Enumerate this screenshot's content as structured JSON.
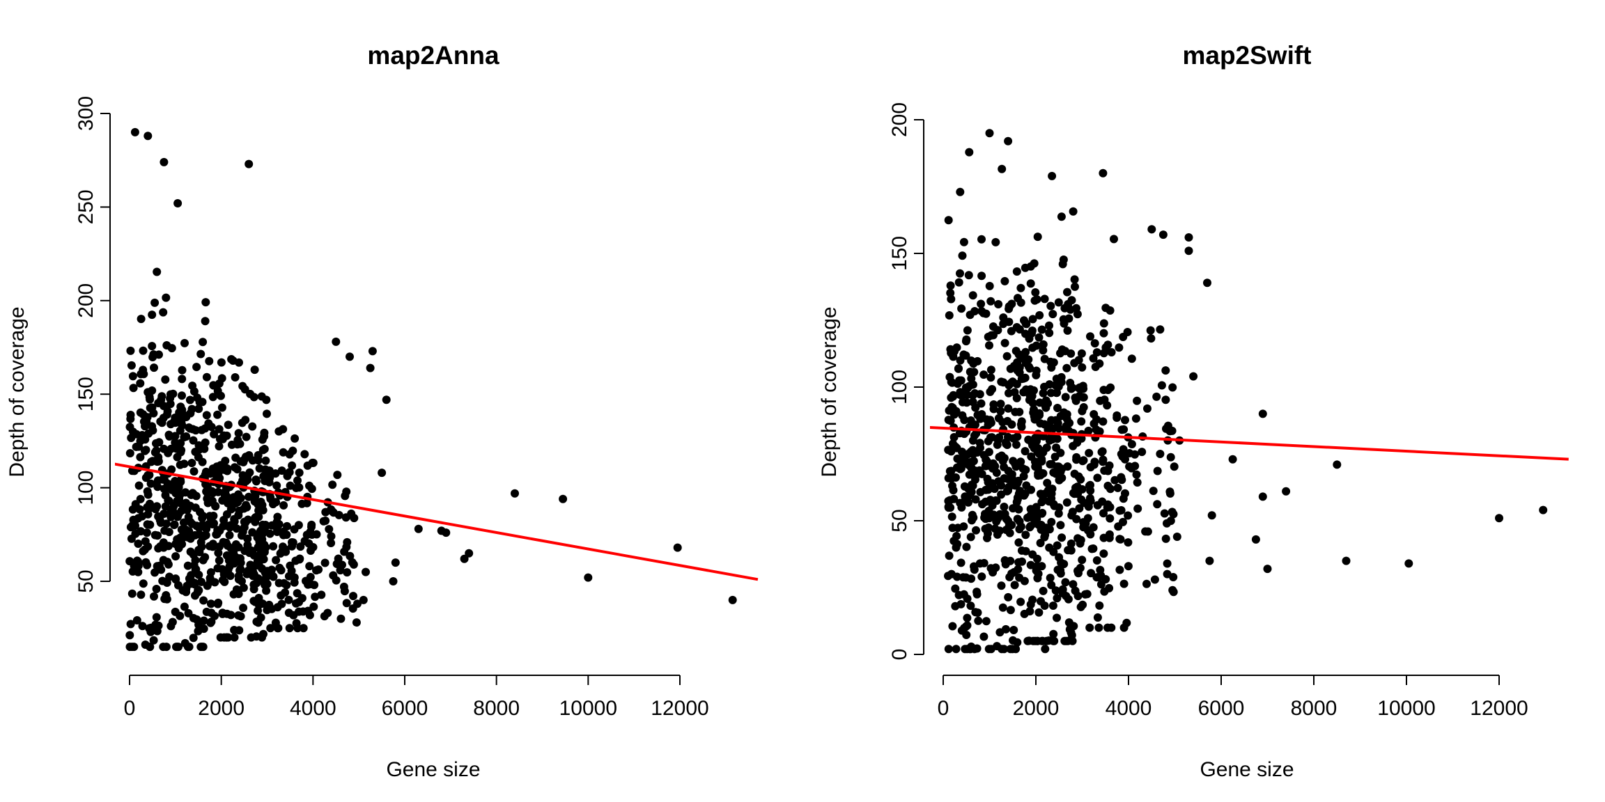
{
  "chart_data": [
    {
      "type": "scatter",
      "title": "map2Anna",
      "xlabel": "Gene size",
      "ylabel": "Depth of coverage",
      "xlim": [
        0,
        13500
      ],
      "ylim": [
        10,
        300
      ],
      "xticks": [
        0,
        2000,
        4000,
        6000,
        8000,
        10000,
        12000
      ],
      "yticks": [
        50,
        100,
        150,
        200,
        250,
        300
      ],
      "point_color": "#000000",
      "regression_line": {
        "color": "#ff0000",
        "x": [
          -400,
          13700
        ],
        "y": [
          113,
          51
        ]
      },
      "grid": false,
      "visible_outliers": [
        {
          "x": 8400,
          "y": 97
        },
        {
          "x": 9450,
          "y": 94
        },
        {
          "x": 10000,
          "y": 52
        },
        {
          "x": 11950,
          "y": 68
        },
        {
          "x": 13150,
          "y": 40
        },
        {
          "x": 6300,
          "y": 78
        },
        {
          "x": 6800,
          "y": 77
        },
        {
          "x": 6900,
          "y": 76
        },
        {
          "x": 7300,
          "y": 62
        },
        {
          "x": 7400,
          "y": 65
        },
        {
          "x": 5800,
          "y": 60
        },
        {
          "x": 5750,
          "y": 50
        },
        {
          "x": 5600,
          "y": 147
        },
        {
          "x": 5500,
          "y": 108
        },
        {
          "x": 5300,
          "y": 173
        },
        {
          "x": 5250,
          "y": 164
        },
        {
          "x": 5150,
          "y": 55
        },
        {
          "x": 5100,
          "y": 40
        },
        {
          "x": 4950,
          "y": 28
        },
        {
          "x": 4800,
          "y": 170
        },
        {
          "x": 4500,
          "y": 178
        },
        {
          "x": 2600,
          "y": 273
        },
        {
          "x": 120,
          "y": 290
        },
        {
          "x": 400,
          "y": 288
        },
        {
          "x": 750,
          "y": 274
        },
        {
          "x": 1050,
          "y": 252
        }
      ],
      "point_cloud": [
        {
          "n": 400,
          "x": [
            0,
            1700
          ],
          "y": [
            15,
            230
          ]
        },
        {
          "n": 320,
          "x": [
            1700,
            3000
          ],
          "y": [
            20,
            185
          ]
        },
        {
          "n": 120,
          "x": [
            3000,
            4000
          ],
          "y": [
            25,
            150
          ]
        },
        {
          "n": 50,
          "x": [
            4000,
            5000
          ],
          "y": [
            30,
            140
          ]
        }
      ]
    },
    {
      "type": "scatter",
      "title": "map2Swift",
      "xlabel": "Gene size",
      "ylabel": "Depth of coverage",
      "xlim": [
        0,
        13500
      ],
      "ylim": [
        0,
        200
      ],
      "xticks": [
        0,
        2000,
        4000,
        6000,
        8000,
        10000,
        12000
      ],
      "yticks": [
        0,
        50,
        100,
        150,
        200
      ],
      "point_color": "#000000",
      "regression_line": {
        "color": "#ff0000",
        "x": [
          -400,
          13500
        ],
        "y": [
          85,
          73
        ]
      },
      "grid": false,
      "visible_outliers": [
        {
          "x": 6250,
          "y": 73
        },
        {
          "x": 6900,
          "y": 90
        },
        {
          "x": 7000,
          "y": 32
        },
        {
          "x": 7400,
          "y": 61
        },
        {
          "x": 8500,
          "y": 71
        },
        {
          "x": 8700,
          "y": 35
        },
        {
          "x": 10050,
          "y": 34
        },
        {
          "x": 12000,
          "y": 51
        },
        {
          "x": 12950,
          "y": 54
        },
        {
          "x": 6750,
          "y": 43
        },
        {
          "x": 6900,
          "y": 59
        },
        {
          "x": 5800,
          "y": 52
        },
        {
          "x": 5750,
          "y": 35
        },
        {
          "x": 5700,
          "y": 139
        },
        {
          "x": 5400,
          "y": 104
        },
        {
          "x": 5300,
          "y": 156
        },
        {
          "x": 5300,
          "y": 151
        },
        {
          "x": 5050,
          "y": 44
        },
        {
          "x": 5100,
          "y": 80
        },
        {
          "x": 4950,
          "y": 24
        },
        {
          "x": 4500,
          "y": 159
        },
        {
          "x": 4750,
          "y": 157
        },
        {
          "x": 3450,
          "y": 180
        },
        {
          "x": 2200,
          "y": 2
        },
        {
          "x": 1000,
          "y": 195
        },
        {
          "x": 1400,
          "y": 192
        }
      ],
      "point_cloud": [
        {
          "n": 420,
          "x": [
            100,
            1700
          ],
          "y": [
            2,
            190
          ]
        },
        {
          "n": 330,
          "x": [
            1700,
            3000
          ],
          "y": [
            5,
            185
          ]
        },
        {
          "n": 130,
          "x": [
            3000,
            4000
          ],
          "y": [
            10,
            160
          ]
        },
        {
          "n": 50,
          "x": [
            4000,
            5000
          ],
          "y": [
            20,
            160
          ]
        }
      ]
    }
  ]
}
